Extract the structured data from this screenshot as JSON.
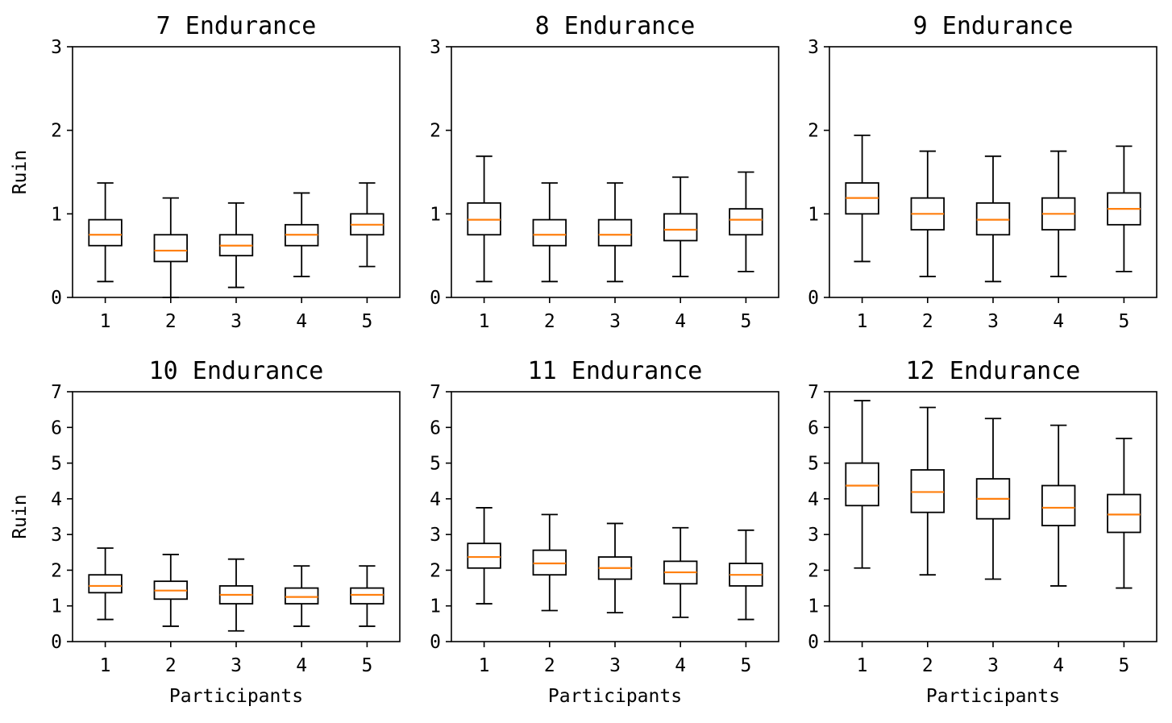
{
  "figure_title": "",
  "chart_data": [
    {
      "type": "boxplot",
      "title": "7 Endurance",
      "xlabel": "",
      "ylabel": "Ruin",
      "ylim": [
        0,
        3
      ],
      "yticks": [
        "0",
        "1",
        "2",
        "3"
      ],
      "categories": [
        "1",
        "2",
        "3",
        "4",
        "5"
      ],
      "boxes": [
        {
          "whislo": 0.19,
          "q1": 0.62,
          "med": 0.75,
          "q3": 0.93,
          "whishi": 1.37
        },
        {
          "whislo": 0.0,
          "q1": 0.43,
          "med": 0.56,
          "q3": 0.75,
          "whishi": 1.19
        },
        {
          "whislo": 0.12,
          "q1": 0.5,
          "med": 0.62,
          "q3": 0.75,
          "whishi": 1.13
        },
        {
          "whislo": 0.25,
          "q1": 0.62,
          "med": 0.75,
          "q3": 0.87,
          "whishi": 1.25
        },
        {
          "whislo": 0.37,
          "q1": 0.75,
          "med": 0.87,
          "q3": 1.0,
          "whishi": 1.37
        }
      ]
    },
    {
      "type": "boxplot",
      "title": "8 Endurance",
      "xlabel": "",
      "ylabel": "",
      "ylim": [
        0,
        3
      ],
      "yticks": [
        "0",
        "1",
        "2",
        "3"
      ],
      "categories": [
        "1",
        "2",
        "3",
        "4",
        "5"
      ],
      "boxes": [
        {
          "whislo": 0.19,
          "q1": 0.75,
          "med": 0.93,
          "q3": 1.13,
          "whishi": 1.69
        },
        {
          "whislo": 0.19,
          "q1": 0.62,
          "med": 0.75,
          "q3": 0.93,
          "whishi": 1.37
        },
        {
          "whislo": 0.19,
          "q1": 0.62,
          "med": 0.75,
          "q3": 0.93,
          "whishi": 1.37
        },
        {
          "whislo": 0.25,
          "q1": 0.68,
          "med": 0.81,
          "q3": 1.0,
          "whishi": 1.44
        },
        {
          "whislo": 0.31,
          "q1": 0.75,
          "med": 0.93,
          "q3": 1.06,
          "whishi": 1.5
        }
      ]
    },
    {
      "type": "boxplot",
      "title": "9 Endurance",
      "xlabel": "",
      "ylabel": "",
      "ylim": [
        0,
        3
      ],
      "yticks": [
        "0",
        "1",
        "2",
        "3"
      ],
      "categories": [
        "1",
        "2",
        "3",
        "4",
        "5"
      ],
      "boxes": [
        {
          "whislo": 0.43,
          "q1": 1.0,
          "med": 1.19,
          "q3": 1.37,
          "whishi": 1.94
        },
        {
          "whislo": 0.25,
          "q1": 0.81,
          "med": 1.0,
          "q3": 1.19,
          "whishi": 1.75
        },
        {
          "whislo": 0.19,
          "q1": 0.75,
          "med": 0.93,
          "q3": 1.13,
          "whishi": 1.69
        },
        {
          "whislo": 0.25,
          "q1": 0.81,
          "med": 1.0,
          "q3": 1.19,
          "whishi": 1.75
        },
        {
          "whislo": 0.31,
          "q1": 0.87,
          "med": 1.06,
          "q3": 1.25,
          "whishi": 1.81
        }
      ]
    },
    {
      "type": "boxplot",
      "title": "10 Endurance",
      "xlabel": "Participants",
      "ylabel": "Ruin",
      "ylim": [
        0,
        7
      ],
      "yticks": [
        "0",
        "1",
        "2",
        "3",
        "4",
        "5",
        "6",
        "7"
      ],
      "categories": [
        "1",
        "2",
        "3",
        "4",
        "5"
      ],
      "boxes": [
        {
          "whislo": 0.62,
          "q1": 1.37,
          "med": 1.56,
          "q3": 1.87,
          "whishi": 2.62
        },
        {
          "whislo": 0.43,
          "q1": 1.19,
          "med": 1.43,
          "q3": 1.69,
          "whishi": 2.44
        },
        {
          "whislo": 0.3,
          "q1": 1.06,
          "med": 1.31,
          "q3": 1.56,
          "whishi": 2.31
        },
        {
          "whislo": 0.43,
          "q1": 1.06,
          "med": 1.25,
          "q3": 1.5,
          "whishi": 2.12
        },
        {
          "whislo": 0.43,
          "q1": 1.06,
          "med": 1.31,
          "q3": 1.5,
          "whishi": 2.12
        }
      ]
    },
    {
      "type": "boxplot",
      "title": "11 Endurance",
      "xlabel": "Participants",
      "ylabel": "",
      "ylim": [
        0,
        7
      ],
      "yticks": [
        "0",
        "1",
        "2",
        "3",
        "4",
        "5",
        "6",
        "7"
      ],
      "categories": [
        "1",
        "2",
        "3",
        "4",
        "5"
      ],
      "boxes": [
        {
          "whislo": 1.06,
          "q1": 2.06,
          "med": 2.37,
          "q3": 2.75,
          "whishi": 3.75
        },
        {
          "whislo": 0.87,
          "q1": 1.87,
          "med": 2.19,
          "q3": 2.56,
          "whishi": 3.56
        },
        {
          "whislo": 0.81,
          "q1": 1.75,
          "med": 2.06,
          "q3": 2.37,
          "whishi": 3.31
        },
        {
          "whislo": 0.68,
          "q1": 1.62,
          "med": 1.94,
          "q3": 2.25,
          "whishi": 3.19
        },
        {
          "whislo": 0.62,
          "q1": 1.56,
          "med": 1.87,
          "q3": 2.19,
          "whishi": 3.12
        }
      ]
    },
    {
      "type": "boxplot",
      "title": "12 Endurance",
      "xlabel": "Participants",
      "ylabel": "",
      "ylim": [
        0,
        7
      ],
      "yticks": [
        "0",
        "1",
        "2",
        "3",
        "4",
        "5",
        "6",
        "7"
      ],
      "categories": [
        "1",
        "2",
        "3",
        "4",
        "5"
      ],
      "boxes": [
        {
          "whislo": 2.06,
          "q1": 3.81,
          "med": 4.37,
          "q3": 5.0,
          "whishi": 6.75
        },
        {
          "whislo": 1.87,
          "q1": 3.62,
          "med": 4.19,
          "q3": 4.81,
          "whishi": 6.56
        },
        {
          "whislo": 1.75,
          "q1": 3.44,
          "med": 4.0,
          "q3": 4.56,
          "whishi": 6.25
        },
        {
          "whislo": 1.56,
          "q1": 3.25,
          "med": 3.75,
          "q3": 4.37,
          "whishi": 6.06
        },
        {
          "whislo": 1.5,
          "q1": 3.06,
          "med": 3.56,
          "q3": 4.12,
          "whishi": 5.69
        }
      ]
    }
  ],
  "colors": {
    "box": "#000000",
    "median": "#ff7f0e",
    "background": "#ffffff"
  }
}
